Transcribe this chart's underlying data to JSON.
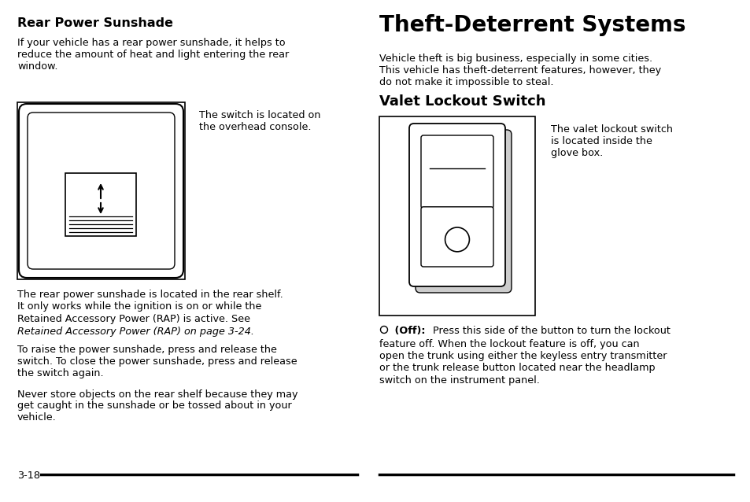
{
  "bg_color": "#ffffff",
  "text_color": "#000000",
  "left_heading": "Rear Power Sunshade",
  "left_para1": "If your vehicle has a rear power sunshade, it helps to\nreduce the amount of heat and light entering the rear\nwindow.",
  "left_img_caption": "The switch is located on\nthe overhead console.",
  "left_para2_line1": "The rear power sunshade is located in the rear shelf.",
  "left_para2_line2": "It only works while the ignition is on or while the",
  "left_para2_line3": "Retained Accessory Power (RAP) is active. See",
  "left_para2_line4_italic": "Retained Accessory Power (RAP) on page 3-24.",
  "left_para3": "To raise the power sunshade, press and release the\nswitch. To close the power sunshade, press and release\nthe switch again.",
  "left_para4": "Never store objects on the rear shelf because they may\nget caught in the sunshade or be tossed about in your\nvehicle.",
  "page_num": "3-18",
  "right_heading": "Theft-Deterrent Systems",
  "right_para1": "Vehicle theft is big business, especially in some cities.\nThis vehicle has theft-deterrent features, however, they\ndo not make it impossible to steal.",
  "right_subheading": "Valet Lockout Switch",
  "right_img_caption": "The valet lockout switch\nis located inside the\nglove box.",
  "off_para": " (Off):  Press this side of the button to turn the lockout\nfeature off. When the lockout feature is off, you can\nopen the trunk using either the keyless entry transmitter\nor the trunk release button located near the headlamp\nswitch on the instrument panel.",
  "body_fs": 9.2,
  "heading_fs": 11.5,
  "big_heading_fs": 20,
  "subheading_fs": 13
}
